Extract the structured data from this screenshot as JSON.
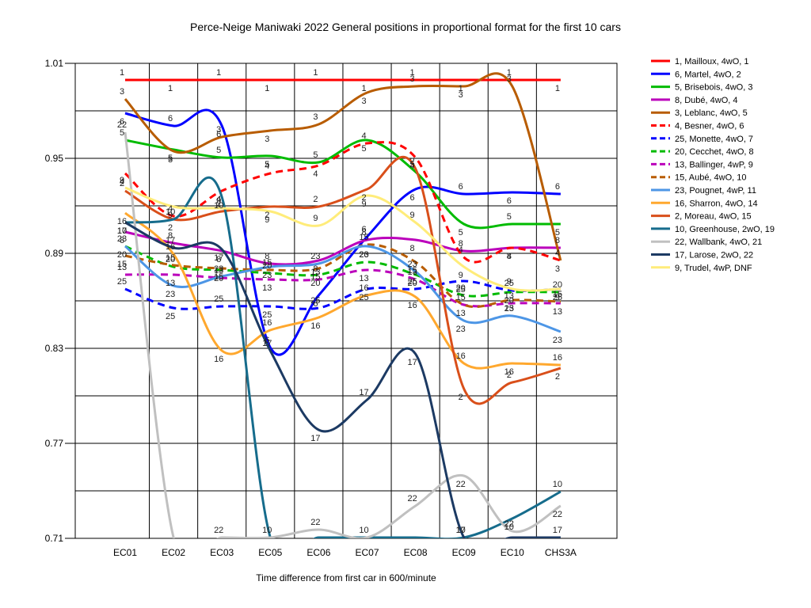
{
  "chart_data": {
    "type": "line",
    "title": "Perce-Neige Maniwaki 2022  General positions in proportional format for the first 10 cars",
    "xlabel": "Time difference from first car in 600/minute",
    "ylabel": "",
    "categories": [
      "EC01",
      "EC02",
      "EC03",
      "EC05",
      "EC06",
      "EC07",
      "EC08",
      "EC09",
      "EC10",
      "CHS3A"
    ],
    "ylim": [
      0.71,
      1.01
    ],
    "yticks": [
      "1.01",
      "0.95",
      "0.89",
      "0.83",
      "0.77",
      "0.71"
    ],
    "grid": true,
    "legend_position": "right",
    "series": [
      {
        "name": "1, Mailloux, 4wO, 1",
        "label": "1",
        "color": "#ff0000",
        "dash": false,
        "values": [
          0.9995,
          0.9995,
          0.9995,
          0.9995,
          0.9995,
          0.9995,
          0.9995,
          0.9995,
          0.9995,
          0.9995
        ]
      },
      {
        "name": "6, Martel, 4wO, 2",
        "label": "6",
        "color": "#0000ff",
        "dash": false,
        "values": [
          0.9785,
          0.9705,
          0.9705,
          0.8305,
          0.8635,
          0.9005,
          0.9305,
          0.9275,
          0.9285,
          0.9275
        ]
      },
      {
        "name": "5, Brisebois, 4wO, 3",
        "label": "5",
        "color": "#00bb00",
        "dash": false,
        "values": [
          0.9615,
          0.9555,
          0.9505,
          0.9515,
          0.9475,
          0.9615,
          0.9415,
          0.9085,
          0.9085,
          0.9085
        ]
      },
      {
        "name": "8, Dubé, 4wO, 4",
        "label": "8",
        "color": "#bb00bb",
        "dash": false,
        "values": [
          0.9035,
          0.8965,
          0.8915,
          0.8835,
          0.8855,
          0.8985,
          0.8985,
          0.8915,
          0.8935,
          0.8935
        ]
      },
      {
        "name": "3, Leblanc, 4wO, 5",
        "label": "3",
        "color": "#b85c00",
        "dash": false,
        "values": [
          0.9875,
          0.9545,
          0.9635,
          0.9675,
          0.9715,
          0.9915,
          0.9955,
          0.9955,
          0.9955,
          0.8855
        ]
      },
      {
        "name": "4, Besner, 4wO, 6",
        "label": "4",
        "color": "#ff0000",
        "dash": true,
        "values": [
          0.9405,
          0.9135,
          0.9295,
          0.9405,
          0.9455,
          0.9595,
          0.9505,
          0.8875,
          0.8935,
          0.8855
        ]
      },
      {
        "name": "25, Monette, 4wO, 7",
        "label": "25",
        "color": "#0000ff",
        "dash": true,
        "values": [
          0.8675,
          0.8555,
          0.8565,
          0.8565,
          0.8555,
          0.8675,
          0.8675,
          0.8725,
          0.8665,
          0.8675
        ]
      },
      {
        "name": "20, Cecchet, 4wO, 8",
        "label": "20",
        "color": "#00bb00",
        "dash": true,
        "values": [
          0.8945,
          0.8815,
          0.8795,
          0.8775,
          0.8765,
          0.8845,
          0.8765,
          0.8635,
          0.8655,
          0.8655
        ]
      },
      {
        "name": "13, Ballinger, 4wP, 9",
        "label": "13",
        "color": "#bb00bb",
        "dash": true,
        "values": [
          0.8765,
          0.8765,
          0.8745,
          0.8735,
          0.8735,
          0.8795,
          0.8735,
          0.8575,
          0.8585,
          0.8585
        ]
      },
      {
        "name": "15, Aubé, 4wO, 10",
        "label": "15",
        "color": "#b85c00",
        "dash": true,
        "values": [
          0.8885,
          0.8825,
          0.8805,
          0.8795,
          0.8805,
          0.8955,
          0.8845,
          0.8575,
          0.8605,
          0.8595
        ]
      },
      {
        "name": "23, Pougnet, 4wP, 11",
        "label": "23",
        "color": "#4d96e6",
        "dash": false,
        "values": [
          0.8945,
          0.8695,
          0.8755,
          0.8815,
          0.8835,
          0.8945,
          0.8785,
          0.8475,
          0.8505,
          0.8405
        ]
      },
      {
        "name": "16, Sharron, 4wO, 14",
        "label": "16",
        "color": "#ffa82e",
        "dash": false,
        "values": [
          0.9155,
          0.8895,
          0.8285,
          0.8415,
          0.8495,
          0.8635,
          0.8625,
          0.8205,
          0.8205,
          0.8195
        ]
      },
      {
        "name": "2, Moreau, 4wO, 15",
        "label": "2",
        "color": "#d94f1a",
        "dash": false,
        "values": [
          0.9295,
          0.9115,
          0.9165,
          0.9195,
          0.9195,
          0.9305,
          0.9435,
          0.8045,
          0.8085,
          0.8175
        ]
      },
      {
        "name": "10, Greenhouse, 2wO, 19",
        "label": "10",
        "color": "#166c8c",
        "dash": false,
        "values": [
          0.9095,
          0.9115,
          0.9255,
          0.7105,
          0.7105,
          0.7105,
          0.7105,
          0.7105,
          0.7225,
          0.7395
        ]
      },
      {
        "name": "22, Wallbank, 4wO, 21",
        "label": "22",
        "color": "#c0c0c0",
        "dash": false,
        "values": [
          0.9665,
          0.7105,
          0.7105,
          0.7105,
          0.7155,
          0.7105,
          0.7305,
          0.7495,
          0.7145,
          0.7305
        ]
      },
      {
        "name": "17, Larose, 2wO, 22",
        "label": "17",
        "color": "#1c3a63",
        "dash": false,
        "values": [
          0.9095,
          0.8935,
          0.8925,
          0.8285,
          0.7785,
          0.7975,
          0.8265,
          0.7105,
          0.7105,
          0.7105
        ]
      },
      {
        "name": "9, Trudel, 4wP, DNF",
        "label": "9",
        "color": "#ffec7a",
        "dash": false,
        "values": [
          0.9315,
          0.9195,
          0.9185,
          0.9165,
          0.9075,
          0.9265,
          0.9095,
          0.8815,
          0.8675,
          0.8675
        ]
      }
    ]
  }
}
